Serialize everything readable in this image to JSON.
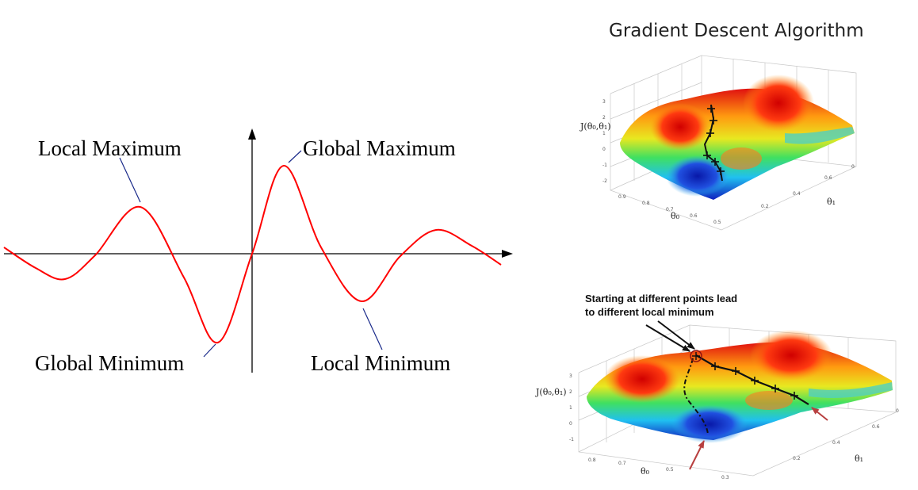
{
  "left_diagram": {
    "labels": {
      "local_maximum": "Local Maximum",
      "global_maximum": "Global Maximum",
      "global_minimum": "Global Minimum",
      "local_minimum": "Local Minimum"
    },
    "colors": {
      "curve": "#ff0000",
      "leader": "#1a2a8a",
      "axis": "#000000"
    }
  },
  "gradient_descent_top": {
    "title": "Gradient Descent Algorithm",
    "z_label": "J(θ₀,θ₁)",
    "x_label": "θ₀",
    "y_label": "θ₁"
  },
  "gradient_descent_bottom": {
    "annotation_line1": "Starting at different points lead",
    "annotation_line2": "to different local minimum",
    "z_label": "J(θ₀,θ₁)",
    "x_label": "θ₀",
    "y_label": "θ₁"
  }
}
